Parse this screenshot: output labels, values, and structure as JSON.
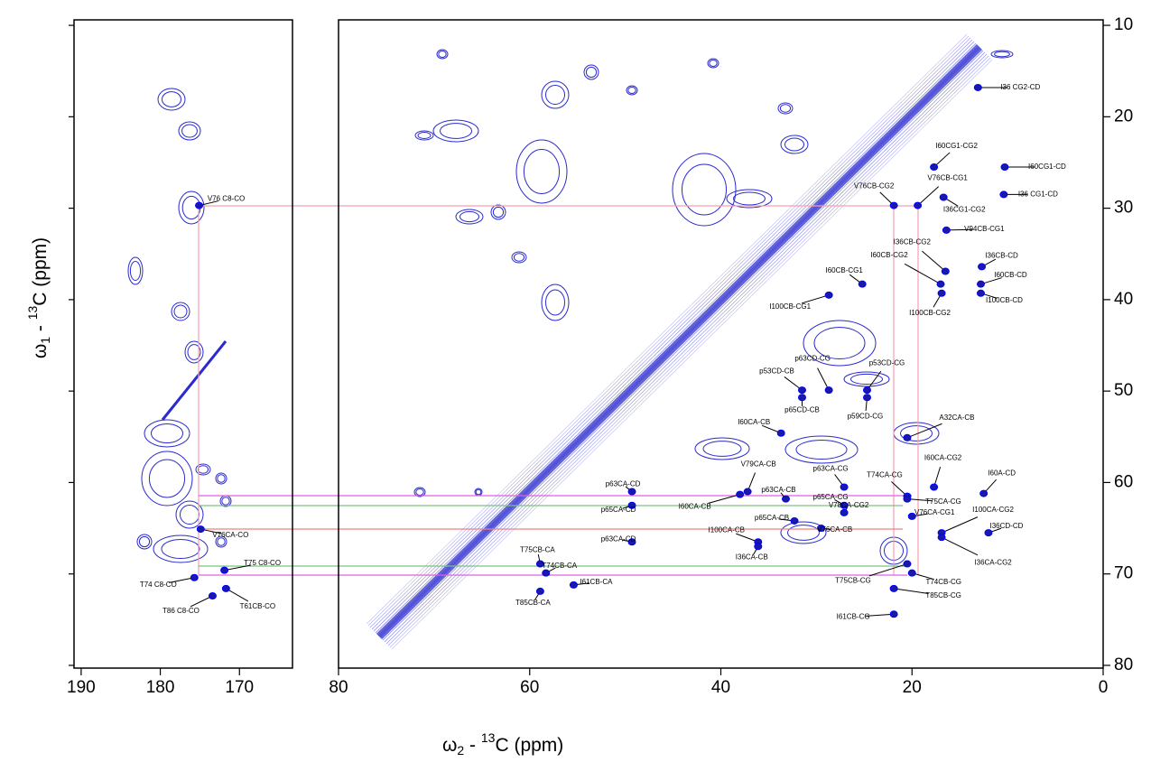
{
  "chart_data": [
    {
      "type": "scatter",
      "color": "#1a1aa8",
      "y_label": [
        "ω",
        "1",
        " - ",
        "13",
        "C  (ppm)"
      ],
      "xlim": [
        190.9,
        163.3
      ],
      "xticks": [
        190,
        180,
        170
      ],
      "ylim": [
        9.4,
        80.3
      ],
      "peaks": [
        {
          "label": "V76 C8-CO",
          "x": 175.1,
          "y": 29.7
        },
        {
          "label": "V76CA-CO",
          "x": 174.9,
          "y": 65.1
        },
        {
          "label": "T75 C8-CO",
          "x": 171.9,
          "y": 69.6
        },
        {
          "label": "T74 C8-CO",
          "x": 175.7,
          "y": 70.4
        },
        {
          "label": "T86 C8-CO",
          "x": 173.4,
          "y": 72.4
        },
        {
          "label": "T61CB-CO",
          "x": 171.7,
          "y": 71.6
        }
      ]
    },
    {
      "type": "scatter",
      "color": "#1a1aa8",
      "x_label": [
        "ω",
        "2",
        " - ",
        "13",
        "C  (ppm)"
      ],
      "xlim": [
        80,
        0
      ],
      "xticks": [
        80,
        60,
        40,
        20,
        0
      ],
      "ylim": [
        9.4,
        80.3
      ],
      "yticks": [
        10,
        20,
        30,
        40,
        50,
        60,
        70,
        80
      ],
      "peaks": [
        {
          "label": "I36 CG2-CD",
          "x": 13.1,
          "y": 16.8
        },
        {
          "label": "I60CG1-CG2",
          "x": 17.7,
          "y": 25.5
        },
        {
          "label": "I60CG1-CD",
          "x": 10.3,
          "y": 25.5
        },
        {
          "label": "V76CB-CG1",
          "x": 19.4,
          "y": 29.7
        },
        {
          "label": "V76CB-CG2",
          "x": 21.9,
          "y": 29.7
        },
        {
          "label": "I36 CG1-CD",
          "x": 10.4,
          "y": 28.5
        },
        {
          "label": "I36CG1-CG2",
          "x": 16.7,
          "y": 28.8
        },
        {
          "label": "V94CB-CG1",
          "x": 16.4,
          "y": 32.4
        },
        {
          "label": "I36CB-CG2",
          "x": 16.5,
          "y": 36.9
        },
        {
          "label": "I36CB-CD",
          "x": 12.7,
          "y": 36.4
        },
        {
          "label": "I60CB-CG2",
          "x": 17.0,
          "y": 38.3
        },
        {
          "label": "I60CB-CD",
          "x": 12.8,
          "y": 38.3
        },
        {
          "label": "I60CB-CG1",
          "x": 25.2,
          "y": 38.3
        },
        {
          "label": "I100CB-CG1",
          "x": 28.7,
          "y": 39.5
        },
        {
          "label": "I100CB-CD",
          "x": 12.8,
          "y": 39.3
        },
        {
          "label": "I100CB-CG2",
          "x": 16.9,
          "y": 39.3
        },
        {
          "label": "p63CD-CG",
          "x": 28.7,
          "y": 49.9
        },
        {
          "label": "p53CD-CB",
          "x": 31.5,
          "y": 49.9
        },
        {
          "label": "p53CD-CG",
          "x": 24.7,
          "y": 49.9
        },
        {
          "label": "p65CD-CB",
          "x": 31.5,
          "y": 50.7
        },
        {
          "label": "p59CD-CG",
          "x": 24.7,
          "y": 50.7
        },
        {
          "label": "A32CA-CB",
          "x": 20.5,
          "y": 55.1
        },
        {
          "label": "I60CA-CB",
          "x": 33.7,
          "y": 54.6
        },
        {
          "label": "p63CA-CG",
          "x": 27.1,
          "y": 60.5
        },
        {
          "label": "V79CA-CB",
          "x": 37.2,
          "y": 61.0
        },
        {
          "label": "T74CA-CG",
          "x": 20.5,
          "y": 61.5
        },
        {
          "label": "I60CA-CG2",
          "x": 17.7,
          "y": 60.5
        },
        {
          "label": "I60A-CD",
          "x": 12.5,
          "y": 61.2
        },
        {
          "label": "p63CA-CD",
          "x": 49.3,
          "y": 61.0
        },
        {
          "label": "I60CA-CB",
          "x": 38.0,
          "y": 61.3
        },
        {
          "label": "p63CA-CB",
          "x": 33.2,
          "y": 61.8
        },
        {
          "label": "p65CA-CG",
          "x": 27.1,
          "y": 62.5
        },
        {
          "label": "T75CA-CG",
          "x": 20.5,
          "y": 61.8
        },
        {
          "label": "p65CA-CD",
          "x": 49.3,
          "y": 62.5
        },
        {
          "label": "I100CA-CG2",
          "x": 16.9,
          "y": 65.5
        },
        {
          "label": "V78CA-CG2",
          "x": 27.1,
          "y": 63.3
        },
        {
          "label": "V76CA-CG1",
          "x": 20.0,
          "y": 63.7
        },
        {
          "label": "p65CA-CB",
          "x": 32.3,
          "y": 64.2
        },
        {
          "label": "I100CA-CB",
          "x": 36.1,
          "y": 66.5
        },
        {
          "label": "V76CA-CB",
          "x": 29.5,
          "y": 65.0
        },
        {
          "label": "I36CD-CD",
          "x": 12.0,
          "y": 65.5
        },
        {
          "label": "p63CA-CD",
          "x": 49.3,
          "y": 66.5
        },
        {
          "label": "I36CA-CB",
          "x": 36.1,
          "y": 67.0
        },
        {
          "label": "I36CA-CG2",
          "x": 16.9,
          "y": 66.0
        },
        {
          "label": "T75CB-CA",
          "x": 58.9,
          "y": 68.9
        },
        {
          "label": "T74CB-CA",
          "x": 58.3,
          "y": 69.9
        },
        {
          "label": "I61CB-CA",
          "x": 55.4,
          "y": 71.2
        },
        {
          "label": "T85CB-CA",
          "x": 58.9,
          "y": 71.9
        },
        {
          "label": "T75CB-CG",
          "x": 20.5,
          "y": 68.9
        },
        {
          "label": "T74CB-CG",
          "x": 20.0,
          "y": 69.9
        },
        {
          "label": "T85CB-CG",
          "x": 21.9,
          "y": 71.6
        },
        {
          "label": "I61CB-CG",
          "x": 21.9,
          "y": 74.4
        }
      ]
    }
  ]
}
